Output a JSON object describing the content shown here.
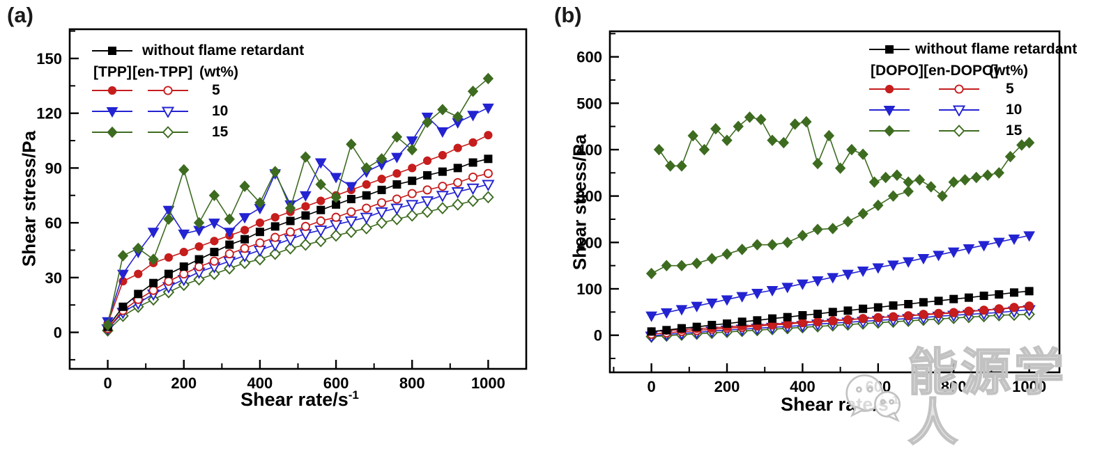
{
  "watermark": {
    "text": "能源学人",
    "icon": "wechat-icon",
    "color": "#c2c2c2"
  },
  "chart_data": [
    {
      "type": "line-scatter",
      "title": "(a)",
      "ylabel": "Shear stress/Pa",
      "xlabel": "Shear rate/s⁻¹",
      "xlabel_base": "Shear rate/s",
      "xlabel_sup": "-1",
      "xlim": [
        -100,
        1100
      ],
      "ylim": [
        -20,
        166
      ],
      "x_ticks": [
        0,
        200,
        400,
        600,
        800,
        1000
      ],
      "y_ticks": [
        0,
        30,
        60,
        90,
        120,
        150
      ],
      "x_minor_step": 100,
      "y_minor_step": 15,
      "grid": false,
      "legend_position": "top-left",
      "legend": {
        "first": {
          "label": "without flame retardant",
          "marker": "square",
          "color": "#000000",
          "filled": true
        },
        "header": [
          "[TPP]",
          "[en-TPP]",
          "(wt%)"
        ],
        "rows": [
          {
            "value": "5",
            "marker": "circle",
            "color": "#c61d1d"
          },
          {
            "value": "10",
            "marker": "triangle-down",
            "color": "#2323d2"
          },
          {
            "value": "15",
            "marker": "diamond",
            "color": "#3d6b20"
          }
        ]
      },
      "series": [
        {
          "name": "en-TPP 15 wt%",
          "marker": "diamond",
          "color": "#3d6b20",
          "filled": false,
          "x": [
            0,
            40,
            80,
            120,
            160,
            200,
            240,
            280,
            320,
            360,
            400,
            440,
            480,
            520,
            560,
            600,
            640,
            680,
            720,
            760,
            800,
            840,
            880,
            920,
            960,
            1000
          ],
          "y": [
            1,
            9,
            14,
            18,
            22,
            26,
            29,
            32,
            35,
            38,
            40,
            43,
            46,
            48,
            50,
            53,
            55,
            57,
            60,
            62,
            64,
            66,
            68,
            70,
            72,
            74
          ]
        },
        {
          "name": "en-TPP 10 wt%",
          "marker": "triangle-down",
          "color": "#2323d2",
          "filled": false,
          "x": [
            0,
            40,
            80,
            120,
            160,
            200,
            240,
            280,
            320,
            360,
            400,
            440,
            480,
            520,
            560,
            600,
            640,
            680,
            720,
            760,
            800,
            840,
            880,
            920,
            960,
            1000
          ],
          "y": [
            2,
            11,
            16,
            21,
            25,
            29,
            33,
            36,
            39,
            42,
            45,
            48,
            51,
            54,
            56,
            59,
            61,
            63,
            66,
            68,
            70,
            72,
            75,
            77,
            79,
            81
          ]
        },
        {
          "name": "en-TPP 5 wt%",
          "marker": "circle",
          "color": "#c61d1d",
          "filled": false,
          "x": [
            0,
            40,
            80,
            120,
            160,
            200,
            240,
            280,
            320,
            360,
            400,
            440,
            480,
            520,
            560,
            600,
            640,
            680,
            720,
            760,
            800,
            840,
            880,
            920,
            960,
            1000
          ],
          "y": [
            2,
            12,
            18,
            23,
            28,
            32,
            36,
            39,
            43,
            46,
            49,
            52,
            55,
            58,
            61,
            63,
            66,
            68,
            71,
            73,
            76,
            78,
            80,
            82,
            85,
            87
          ]
        },
        {
          "name": "without flame retardant",
          "marker": "square",
          "color": "#000000",
          "filled": true,
          "x": [
            0,
            40,
            80,
            120,
            160,
            200,
            240,
            280,
            320,
            360,
            400,
            440,
            480,
            520,
            560,
            600,
            640,
            680,
            720,
            760,
            800,
            840,
            880,
            920,
            960,
            1000
          ],
          "y": [
            3,
            14,
            21,
            27,
            32,
            36,
            40,
            44,
            48,
            51,
            55,
            58,
            61,
            64,
            67,
            70,
            73,
            75,
            78,
            81,
            83,
            86,
            88,
            90,
            93,
            95
          ]
        },
        {
          "name": "TPP 5 wt%",
          "marker": "circle",
          "color": "#c61d1d",
          "filled": true,
          "x": [
            0,
            40,
            80,
            120,
            160,
            200,
            240,
            280,
            320,
            360,
            400,
            440,
            480,
            520,
            560,
            600,
            640,
            680,
            720,
            760,
            800,
            840,
            880,
            920,
            960,
            1000
          ],
          "y": [
            5,
            28,
            32,
            38,
            41,
            44,
            47,
            50,
            53,
            56,
            60,
            63,
            66,
            69,
            72,
            75,
            78,
            81,
            84,
            87,
            90,
            94,
            97,
            101,
            104,
            108
          ]
        },
        {
          "name": "TPP 10 wt%",
          "marker": "triangle-down",
          "color": "#2323d2",
          "filled": true,
          "x": [
            0,
            40,
            80,
            120,
            160,
            200,
            240,
            280,
            320,
            360,
            400,
            440,
            480,
            520,
            560,
            600,
            640,
            680,
            720,
            760,
            800,
            840,
            880,
            920,
            960,
            1000
          ],
          "y": [
            6,
            32,
            44,
            55,
            67,
            54,
            56,
            60,
            55,
            63,
            68,
            87,
            70,
            75,
            93,
            85,
            80,
            88,
            92,
            96,
            105,
            118,
            110,
            115,
            119,
            123
          ]
        },
        {
          "name": "TPP 15 wt%",
          "marker": "diamond",
          "color": "#3d6b20",
          "filled": true,
          "x": [
            0,
            40,
            80,
            120,
            160,
            200,
            240,
            280,
            320,
            360,
            400,
            440,
            480,
            520,
            560,
            600,
            640,
            680,
            720,
            760,
            800,
            840,
            880,
            920,
            960,
            1000
          ],
          "y": [
            4,
            42,
            46,
            40,
            62,
            89,
            60,
            75,
            62,
            80,
            71,
            88,
            68,
            96,
            81,
            74,
            103,
            90,
            95,
            107,
            100,
            115,
            122,
            118,
            132,
            139
          ]
        }
      ]
    },
    {
      "type": "line-scatter",
      "title": "(b)",
      "ylabel": "Shear stress/Pa",
      "xlabel": "Shear rate/s⁻¹",
      "xlabel_base": "Shear rate/s",
      "xlabel_sup": "-1",
      "xlim": [
        -110,
        1080
      ],
      "ylim": [
        -80,
        655
      ],
      "x_ticks": [
        0,
        200,
        400,
        600,
        800,
        1000
      ],
      "y_ticks": [
        0,
        100,
        200,
        300,
        400,
        500,
        600
      ],
      "x_minor_step": 100,
      "y_minor_step": 50,
      "grid": false,
      "legend_position": "top-right",
      "legend": {
        "first": {
          "label": "without flame retardant",
          "marker": "square",
          "color": "#000000",
          "filled": true
        },
        "header": [
          "[DOPO]",
          "[en-DOPO]",
          "(wt%)"
        ],
        "rows": [
          {
            "value": "5",
            "marker": "circle",
            "color": "#c61d1d"
          },
          {
            "value": "10",
            "marker": "triangle-down",
            "color": "#2323d2"
          },
          {
            "value": "15",
            "marker": "diamond",
            "color": "#3d6b20"
          }
        ]
      },
      "series": [
        {
          "name": "en-DOPO 15 wt%",
          "marker": "diamond",
          "color": "#3d6b20",
          "filled": false,
          "x": [
            0,
            40,
            80,
            120,
            160,
            200,
            240,
            280,
            320,
            360,
            400,
            440,
            480,
            520,
            560,
            600,
            640,
            680,
            720,
            760,
            800,
            840,
            880,
            920,
            960,
            1000
          ],
          "y": [
            -3,
            -1,
            1,
            3,
            5,
            7,
            9,
            11,
            13,
            15,
            17,
            19,
            21,
            23,
            25,
            27,
            29,
            31,
            33,
            35,
            37,
            39,
            41,
            43,
            44,
            45
          ]
        },
        {
          "name": "en-DOPO 10 wt%",
          "marker": "triangle-down",
          "color": "#2323d2",
          "filled": false,
          "x": [
            0,
            40,
            80,
            120,
            160,
            200,
            240,
            280,
            320,
            360,
            400,
            440,
            480,
            520,
            560,
            600,
            640,
            680,
            720,
            760,
            800,
            840,
            880,
            920,
            960,
            1000
          ],
          "y": [
            -2,
            2,
            4,
            6,
            9,
            11,
            13,
            15,
            17,
            19,
            21,
            24,
            26,
            28,
            30,
            32,
            34,
            36,
            38,
            41,
            43,
            45,
            47,
            49,
            52,
            55
          ]
        },
        {
          "name": "en-DOPO 5 wt%",
          "marker": "circle",
          "color": "#c61d1d",
          "filled": false,
          "x": [
            0,
            40,
            80,
            120,
            160,
            200,
            240,
            280,
            320,
            360,
            400,
            440,
            480,
            520,
            560,
            600,
            640,
            680,
            720,
            760,
            800,
            840,
            880,
            920,
            960,
            1000
          ],
          "y": [
            2,
            5,
            8,
            10,
            13,
            15,
            17,
            20,
            22,
            24,
            27,
            29,
            31,
            33,
            36,
            38,
            40,
            42,
            45,
            47,
            49,
            52,
            54,
            57,
            60,
            63
          ]
        },
        {
          "name": "DOPO 5 wt%",
          "marker": "circle",
          "color": "#c61d1d",
          "filled": true,
          "x": [
            0,
            40,
            80,
            120,
            160,
            200,
            240,
            280,
            320,
            360,
            400,
            440,
            480,
            520,
            560,
            600,
            640,
            680,
            720,
            760,
            800,
            840,
            880,
            920,
            960,
            1000
          ],
          "y": [
            8,
            10,
            12,
            14,
            16,
            18,
            20,
            22,
            24,
            26,
            28,
            30,
            32,
            34,
            36,
            38,
            40,
            42,
            44,
            46,
            48,
            51,
            54,
            56,
            59,
            62
          ]
        },
        {
          "name": "without flame retardant",
          "marker": "square",
          "color": "#000000",
          "filled": true,
          "x": [
            0,
            40,
            80,
            120,
            160,
            200,
            240,
            280,
            320,
            360,
            400,
            440,
            480,
            520,
            560,
            600,
            640,
            680,
            720,
            760,
            800,
            840,
            880,
            920,
            960,
            1000
          ],
          "y": [
            8,
            11,
            15,
            18,
            22,
            25,
            29,
            32,
            36,
            39,
            43,
            46,
            50,
            53,
            57,
            60,
            64,
            67,
            71,
            74,
            78,
            81,
            85,
            88,
            92,
            95
          ]
        },
        {
          "name": "DOPO 10 wt%",
          "marker": "triangle-down",
          "color": "#2323d2",
          "filled": true,
          "x": [
            0,
            40,
            80,
            120,
            160,
            200,
            240,
            280,
            320,
            360,
            400,
            440,
            480,
            520,
            560,
            600,
            640,
            680,
            720,
            760,
            800,
            840,
            880,
            920,
            960,
            1000
          ],
          "y": [
            42,
            49,
            56,
            63,
            70,
            77,
            84,
            91,
            97,
            104,
            111,
            118,
            125,
            132,
            139,
            146,
            152,
            159,
            166,
            173,
            180,
            187,
            194,
            201,
            208,
            215
          ]
        },
        {
          "name": "DOPO 15 wt%",
          "marker": "diamond",
          "color": "#3d6b20",
          "filled": true,
          "segments": [
            {
              "x": [
                0,
                40,
                80,
                120,
                160,
                200,
                240,
                280,
                320,
                360,
                400,
                440,
                480,
                520,
                560,
                600,
                640,
                680
              ],
              "y": [
                133,
                150,
                150,
                155,
                165,
                175,
                185,
                195,
                195,
                200,
                215,
                228,
                230,
                245,
                262,
                280,
                300,
                310
              ]
            },
            {
              "x": [
                20,
                50,
                80,
                110,
                140,
                170,
                200,
                230,
                260,
                290,
                320,
                350,
                380,
                410,
                440,
                470,
                500,
                530,
                560,
                590,
                620,
                650,
                680,
                710,
                740,
                770,
                800,
                830,
                860,
                890,
                920,
                950,
                980,
                1000
              ],
              "y": [
                400,
                365,
                365,
                430,
                400,
                445,
                420,
                450,
                470,
                465,
                420,
                415,
                455,
                460,
                370,
                430,
                360,
                400,
                390,
                330,
                340,
                345,
                330,
                335,
                320,
                300,
                330,
                335,
                340,
                345,
                350,
                385,
                410,
                415
              ]
            }
          ]
        }
      ]
    }
  ]
}
